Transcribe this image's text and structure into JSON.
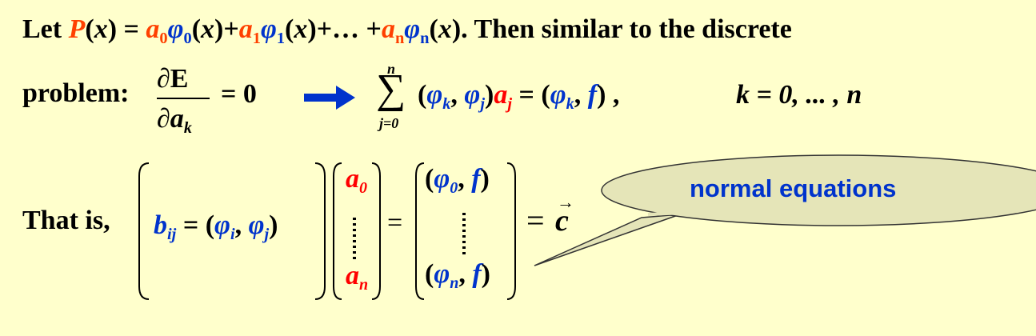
{
  "line1": {
    "let": "Let ",
    "P": "P",
    "x": "x",
    "eq": " = ",
    "a": "a",
    "phi": "φ",
    "i0": "0",
    "i1": "1",
    "in": "n",
    "ellipsis": "+… +",
    "rest": ".  Then similar to the discrete"
  },
  "line2": {
    "problem": "problem:",
    "dE": "∂E",
    "dak": "∂a",
    "k": "k",
    "eq0": "= 0",
    "sum_top": "n",
    "sum_sym": "∑",
    "sum_bot": "j=0",
    "phi": "φ",
    "k_sub": "k",
    "j_sub": "j",
    "a": "a",
    "f": "f",
    "tail": "k = 0, ... , n"
  },
  "line3": {
    "that_is": "That is,",
    "b": "b",
    "ij": "ij",
    "i": "i",
    "j": "j",
    "a": "a",
    "a0": "0",
    "an": "n",
    "phi": "φ",
    "f": "f",
    "zero": "0",
    "n": "n",
    "equals": "=",
    "c": "c",
    "arrow": "→"
  },
  "callout": {
    "text": "normal equations",
    "fill": "#e5e5b8",
    "stroke": "#333333"
  },
  "colors": {
    "background": "#ffffcc",
    "red": "#ff0000",
    "blue": "#0033cc",
    "arrow": "#0033cc"
  }
}
